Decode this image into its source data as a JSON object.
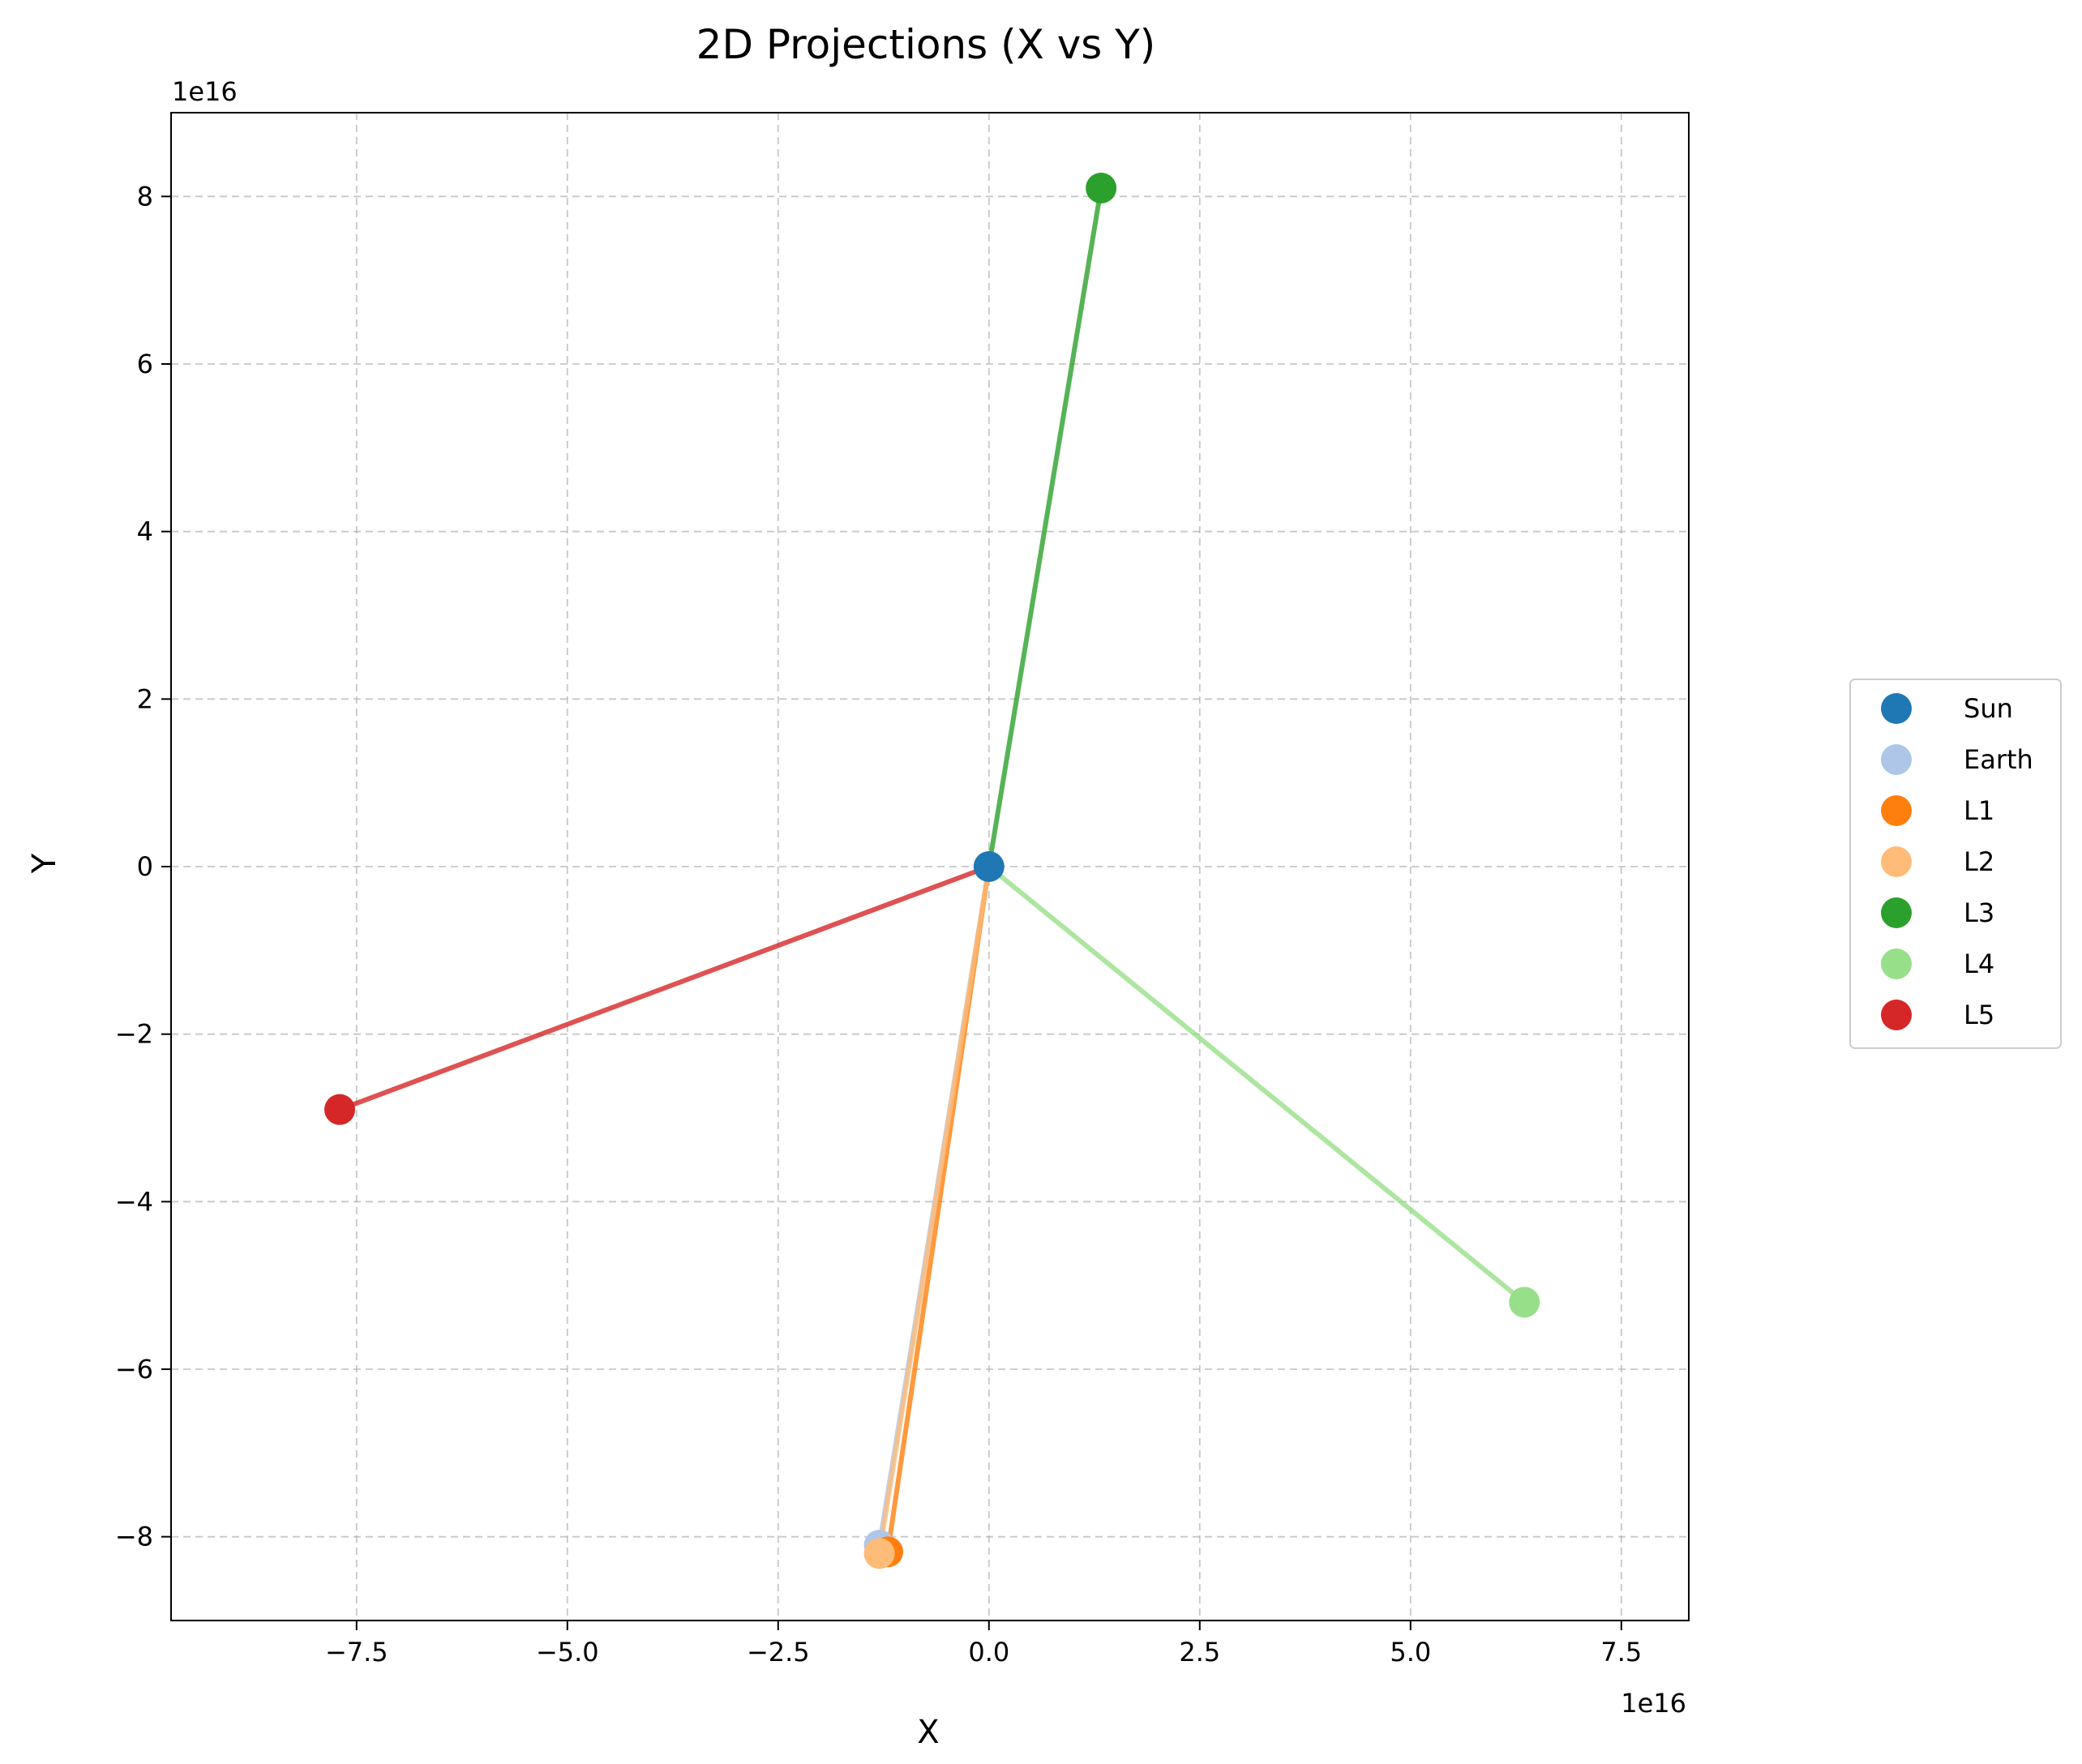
{
  "chart_data": {
    "type": "scatter",
    "title": "2D Projections (X vs Y)",
    "xlabel": "X",
    "ylabel": "Y",
    "x_offset_text": "1e16",
    "y_offset_text": "1e16",
    "xlim": [
      -9.7,
      8.3
    ],
    "ylim": [
      -9.0,
      9.0
    ],
    "xticks": [
      -7.5,
      -5.0,
      -2.5,
      0.0,
      2.5,
      5.0,
      7.5
    ],
    "xtick_labels": [
      "−7.5",
      "−5.0",
      "−2.5",
      "0.0",
      "2.5",
      "5.0",
      "7.5"
    ],
    "yticks": [
      -8,
      -6,
      -4,
      -2,
      0,
      2,
      4,
      6,
      8
    ],
    "ytick_labels": [
      "−8",
      "−6",
      "−4",
      "−2",
      "0",
      "2",
      "4",
      "6",
      "8"
    ],
    "grid": true,
    "legend_position": "outside-right",
    "units_scale": "1e16",
    "series": [
      {
        "name": "Sun",
        "color": "#1f77b4",
        "line_color": "#1f77b4",
        "x": [
          0.0
        ],
        "y": [
          0.0
        ]
      },
      {
        "name": "Earth",
        "color": "#aec7e8",
        "line_color": "#aec7e8",
        "x": [
          0.0,
          -1.3
        ],
        "y": [
          0.0,
          -8.1
        ]
      },
      {
        "name": "L1",
        "color": "#ff7f0e",
        "line_color": "#ff7f0e",
        "x": [
          0.0,
          -1.2
        ],
        "y": [
          0.0,
          -8.18
        ]
      },
      {
        "name": "L2",
        "color": "#ffbb78",
        "line_color": "#ffbb78",
        "x": [
          0.0,
          -1.3
        ],
        "y": [
          0.0,
          -8.2
        ]
      },
      {
        "name": "L3",
        "color": "#2ca02c",
        "line_color": "#2ca02c",
        "x": [
          0.0,
          1.33
        ],
        "y": [
          0.0,
          8.1
        ]
      },
      {
        "name": "L4",
        "color": "#98df8a",
        "line_color": "#98df8a",
        "x": [
          0.0,
          6.35
        ],
        "y": [
          0.0,
          -5.2
        ]
      },
      {
        "name": "L5",
        "color": "#d62728",
        "line_color": "#d62728",
        "x": [
          0.0,
          -7.7
        ],
        "y": [
          0.0,
          -2.9
        ]
      }
    ]
  }
}
